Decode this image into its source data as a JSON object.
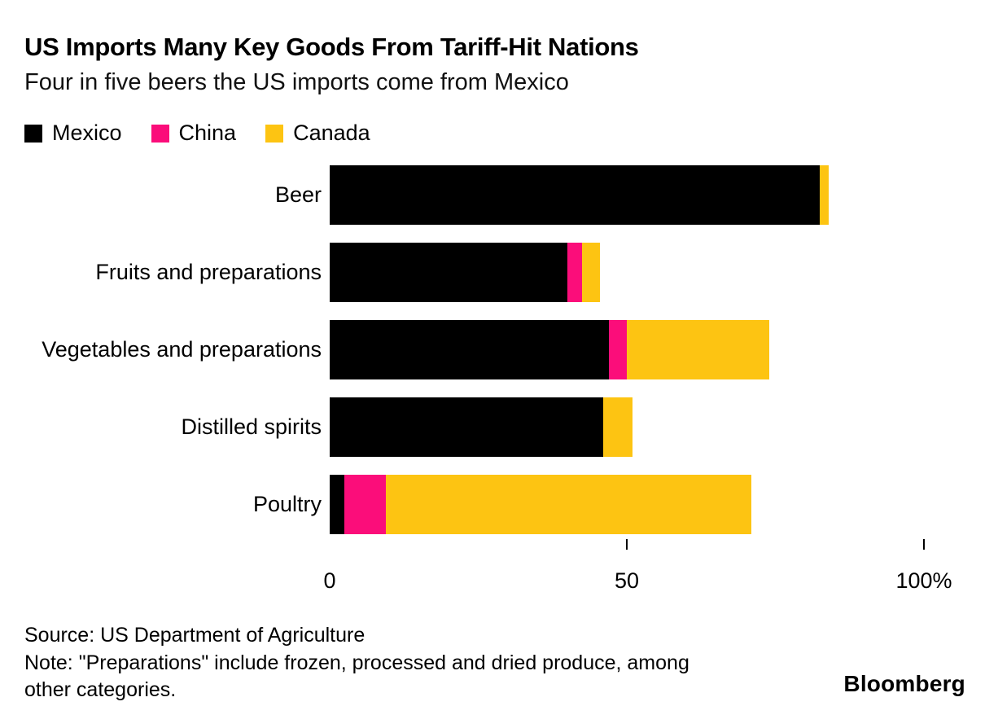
{
  "header": {
    "title": "US Imports Many Key Goods From Tariff-Hit Nations",
    "subtitle": "Four in five beers the US imports come from Mexico"
  },
  "legend": [
    {
      "label": "Mexico",
      "color": "#000000"
    },
    {
      "label": "China",
      "color": "#fb0d7a"
    },
    {
      "label": "Canada",
      "color": "#fdc412"
    }
  ],
  "chart_data": {
    "type": "bar",
    "orientation": "horizontal",
    "stacked": true,
    "title": "US Imports Many Key Goods From Tariff-Hit Nations",
    "subtitle": "Four in five beers the US imports come from Mexico",
    "categories": [
      "Beer",
      "Fruits and preparations",
      "Vegetables and preparations",
      "Distilled spirits",
      "Poultry"
    ],
    "series": [
      {
        "name": "Mexico",
        "color": "#000000",
        "values": [
          82.5,
          40,
          47,
          46,
          2.5
        ]
      },
      {
        "name": "China",
        "color": "#fb0d7a",
        "values": [
          0,
          2.5,
          3,
          0,
          7
        ]
      },
      {
        "name": "Canada",
        "color": "#fdc412",
        "values": [
          1.5,
          3,
          24,
          5,
          61.5
        ]
      }
    ],
    "xlabel": "",
    "ylabel": "",
    "xlim": [
      0,
      100
    ],
    "x_ticks": [
      {
        "value": 0,
        "label": "0",
        "tick_mark": false
      },
      {
        "value": 50,
        "label": "50",
        "tick_mark": true
      },
      {
        "value": 100,
        "label": "100%",
        "tick_mark": true
      }
    ],
    "grid": false,
    "legend_position": "top"
  },
  "footer": {
    "source": "Source: US Department of Agriculture",
    "note": "Note: \"Preparations\" include frozen, processed and dried produce, among other categories.",
    "brand": "Bloomberg"
  }
}
